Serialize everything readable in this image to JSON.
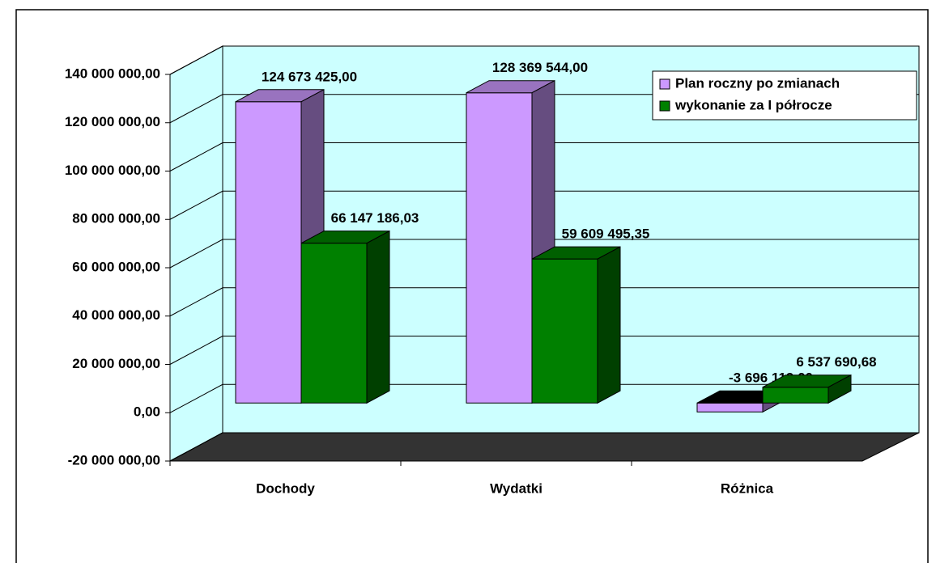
{
  "chart_data": {
    "type": "bar",
    "categories": [
      "Dochody",
      "Wydatki",
      "Różnica"
    ],
    "series": [
      {
        "name": "Plan roczny po zmianach",
        "color": "#cc99ff",
        "values": [
          124673425,
          128369544,
          -3696119
        ],
        "value_labels": [
          "124 673 425,00",
          "128 369 544,00",
          "-3 696 119,00"
        ]
      },
      {
        "name": "wykonanie za I półrocze",
        "color": "#008000",
        "values": [
          66147186.03,
          59609495.35,
          6537690.68
        ],
        "value_labels": [
          "66 147 186,03",
          "59 609 495,35",
          "6 537 690,68"
        ]
      }
    ],
    "ylim": [
      -20000000,
      140000000
    ],
    "yticks": [
      {
        "value": -20000000,
        "label": "-20 000 000,00"
      },
      {
        "value": 0,
        "label": "0,00"
      },
      {
        "value": 20000000,
        "label": "20 000 000,00"
      },
      {
        "value": 40000000,
        "label": "40 000 000,00"
      },
      {
        "value": 60000000,
        "label": "60 000 000,00"
      },
      {
        "value": 80000000,
        "label": "80 000 000,00"
      },
      {
        "value": 100000000,
        "label": "100 000 000,00"
      },
      {
        "value": 120000000,
        "label": "120 000 000,00"
      },
      {
        "value": 140000000,
        "label": "140 000 000,00"
      }
    ],
    "grid": true,
    "legend": "top-right"
  }
}
